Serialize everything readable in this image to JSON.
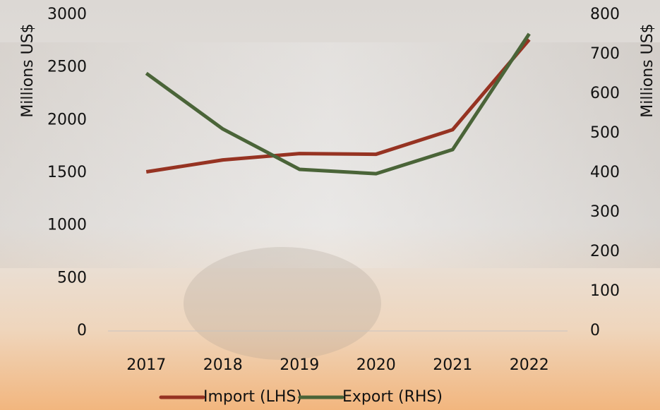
{
  "chart_data": {
    "type": "line",
    "categories": [
      "2017",
      "2018",
      "2019",
      "2020",
      "2021",
      "2022"
    ],
    "series": [
      {
        "name": "Import (LHS)",
        "color": "#963322",
        "values": [
          1510,
          1623,
          1683,
          1677,
          1910,
          2765
        ]
      },
      {
        "name": "Export (RHS)",
        "color": "#4a6438",
        "axis": "y2",
        "values": [
          652,
          511,
          409,
          398,
          459,
          752
        ]
      }
    ],
    "ylabel": "Millions US$",
    "y2label": "Millions US$",
    "ylim": [
      0,
      3000
    ],
    "yticks": [
      0,
      500,
      1000,
      1500,
      2000,
      2500,
      3000
    ],
    "y2lim": [
      0,
      800
    ],
    "y2ticks": [
      0,
      100,
      200,
      300,
      400,
      500,
      600,
      700,
      800
    ],
    "legend": "bottom",
    "grid": false
  }
}
